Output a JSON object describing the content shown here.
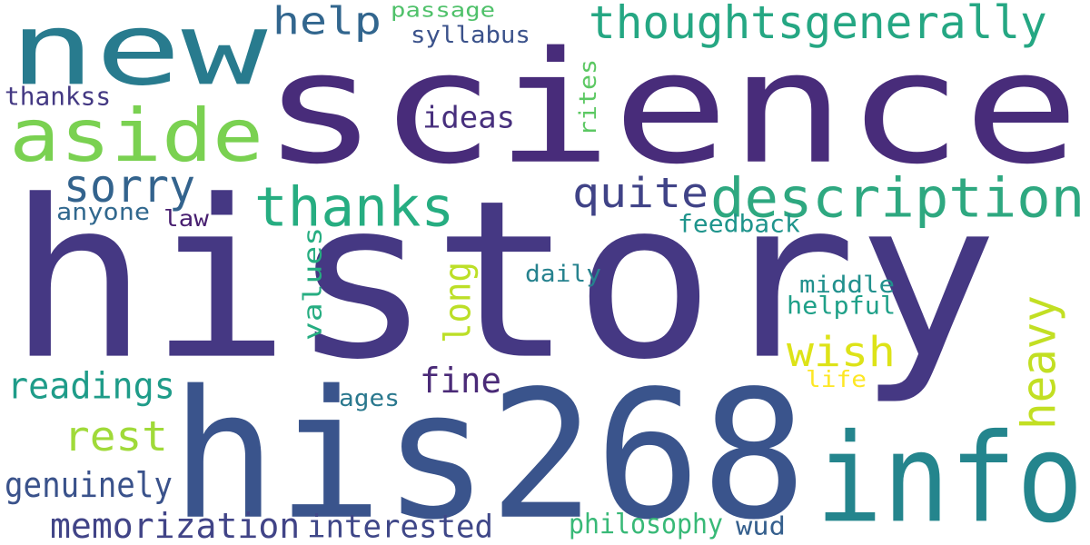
{
  "words": [
    {
      "text": "history",
      "color": "#453883"
    },
    {
      "text": "science",
      "color": "#482c7a"
    },
    {
      "text": "his268",
      "color": "#3a548c"
    },
    {
      "text": "new",
      "color": "#287b8e"
    },
    {
      "text": "info",
      "color": "#24858d"
    },
    {
      "text": "aside",
      "color": "#7ad151"
    },
    {
      "text": "thoughtsgenerally",
      "color": "#25a783"
    },
    {
      "text": "description",
      "color": "#2ea880"
    },
    {
      "text": "thanks",
      "color": "#26ad81"
    },
    {
      "text": "sorry",
      "color": "#33638d"
    },
    {
      "text": "quite",
      "color": "#404387"
    },
    {
      "text": "help",
      "color": "#32668e"
    },
    {
      "text": "wish",
      "color": "#dde318"
    },
    {
      "text": "heavy",
      "color": "#c2df23"
    },
    {
      "text": "readings",
      "color": "#1f9c89"
    },
    {
      "text": "rest",
      "color": "#a0da39"
    },
    {
      "text": "fine",
      "color": "#4a2a77"
    },
    {
      "text": "genuinely",
      "color": "#3a528b"
    },
    {
      "text": "memorization",
      "color": "#414487"
    },
    {
      "text": "interested",
      "color": "#3f4788"
    },
    {
      "text": "ideas",
      "color": "#472f7d"
    },
    {
      "text": "long",
      "color": "#bcdf27"
    },
    {
      "text": "values",
      "color": "#26ad81"
    },
    {
      "text": "passage",
      "color": "#4fc16a"
    },
    {
      "text": "syllabus",
      "color": "#3b528b"
    },
    {
      "text": "thankss",
      "color": "#443983"
    },
    {
      "text": "rites",
      "color": "#5cc863"
    },
    {
      "text": "anyone",
      "color": "#31688e"
    },
    {
      "text": "law",
      "color": "#481f70"
    },
    {
      "text": "feedback",
      "color": "#1f948c"
    },
    {
      "text": "daily",
      "color": "#26828e"
    },
    {
      "text": "middle",
      "color": "#21908d"
    },
    {
      "text": "helpful",
      "color": "#1fa088"
    },
    {
      "text": "life",
      "color": "#fde725"
    },
    {
      "text": "ages",
      "color": "#2a788e"
    },
    {
      "text": "philosophy",
      "color": "#38b977"
    },
    {
      "text": "wud",
      "color": "#355f8d"
    }
  ]
}
